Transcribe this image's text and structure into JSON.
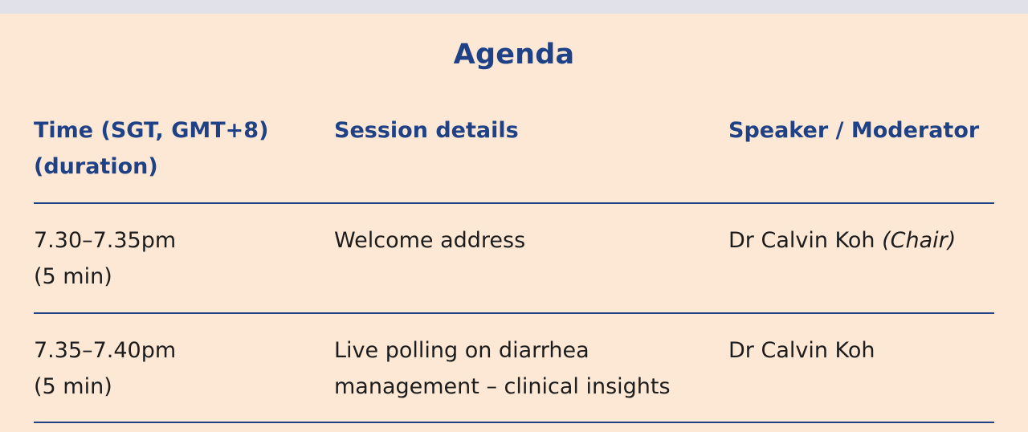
{
  "agenda": {
    "title": "Agenda",
    "headers": {
      "time_line1": "Time (SGT, GMT+8)",
      "time_line2": "(duration)",
      "session": "Session details",
      "speaker": "Speaker / Moderator"
    },
    "rows": [
      {
        "time": "7.30–7.35pm",
        "duration": "(5 min)",
        "session_line1": "Welcome address",
        "session_line2": "",
        "speaker": "Dr Calvin Koh",
        "speaker_role": "(Chair)"
      },
      {
        "time": "7.35–7.40pm",
        "duration": "(5 min)",
        "session_line1": "Live polling on diarrhea",
        "session_line2": "management – clinical insights",
        "speaker": "Dr Calvin Koh",
        "speaker_role": ""
      }
    ],
    "colors": {
      "background": "#fde8d6",
      "heading": "#1f4286",
      "text": "#1c1c1c",
      "top_strip": "#e1e1ea"
    }
  }
}
